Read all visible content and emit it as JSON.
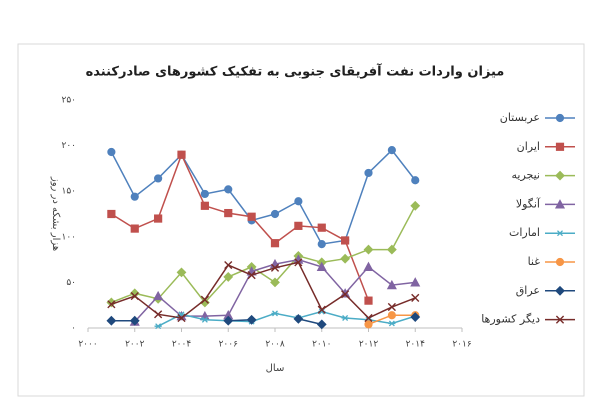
{
  "chart_data": {
    "type": "line",
    "title": "میزان واردات نفت آفریقای جنوبی به تفکیک کشورهای صادرکننده",
    "y_label": "هزار بشکه در روز",
    "x_label": "سال",
    "x": [
      2001,
      2002,
      2003,
      2004,
      2005,
      2006,
      2007,
      2008,
      2009,
      2010,
      2011,
      2012,
      2013,
      2014
    ],
    "xlim": [
      2000,
      2016
    ],
    "xticks": [
      {
        "value": 2000,
        "label": "۲۰۰۰"
      },
      {
        "value": 2002,
        "label": "۲۰۰۲"
      },
      {
        "value": 2004,
        "label": "۲۰۰۴"
      },
      {
        "value": 2006,
        "label": "۲۰۰۶"
      },
      {
        "value": 2008,
        "label": "۲۰۰۸"
      },
      {
        "value": 2010,
        "label": "۲۰۱۰"
      },
      {
        "value": 2012,
        "label": "۲۰۱۲"
      },
      {
        "value": 2014,
        "label": "۲۰۱۴"
      },
      {
        "value": 2016,
        "label": "۲۰۱۶"
      }
    ],
    "ylim": [
      0,
      250
    ],
    "yticks": [
      {
        "value": 0,
        "label": "۰"
      },
      {
        "value": 50,
        "label": "۵۰"
      },
      {
        "value": 100,
        "label": "۱۰۰"
      },
      {
        "value": 150,
        "label": "۱۵۰"
      },
      {
        "value": 200,
        "label": "۲۰۰"
      },
      {
        "value": 250,
        "label": "۲۵۰"
      }
    ],
    "grid": false,
    "legend": "right",
    "series": [
      {
        "name": "عربستان",
        "color": "#4f81bd",
        "marker": "circle",
        "values": [
          193,
          144,
          164,
          190,
          147,
          152,
          118,
          125,
          139,
          92,
          96,
          170,
          195,
          162
        ]
      },
      {
        "name": "ایران",
        "color": "#c0504d",
        "marker": "square",
        "values": [
          125,
          109,
          120,
          190,
          134,
          126,
          122,
          93,
          112,
          110,
          96,
          30,
          null,
          null
        ]
      },
      {
        "name": "نیجریه",
        "color": "#9bbb59",
        "marker": "diamond",
        "values": [
          28,
          38,
          32,
          61,
          28,
          56,
          67,
          50,
          79,
          72,
          76,
          86,
          86,
          134
        ]
      },
      {
        "name": "آنگولا",
        "color": "#8064a2",
        "marker": "triangle",
        "values": [
          null,
          7,
          35,
          13,
          13,
          14,
          62,
          70,
          75,
          67,
          38,
          67,
          47,
          50
        ]
      },
      {
        "name": "امارات",
        "color": "#4bacc6",
        "marker": "star",
        "values": [
          null,
          null,
          2,
          15,
          9,
          8,
          7,
          16,
          11,
          18,
          11,
          9,
          5,
          13
        ]
      },
      {
        "name": "غنا",
        "color": "#f79646",
        "marker": "circle",
        "values": [
          null,
          null,
          null,
          null,
          null,
          null,
          null,
          null,
          null,
          null,
          null,
          4,
          14,
          14
        ]
      },
      {
        "name": "عراق",
        "color": "#1f497d",
        "marker": "diamond",
        "values": [
          8,
          8,
          null,
          null,
          null,
          8,
          9,
          null,
          10,
          4,
          null,
          null,
          null,
          12
        ]
      },
      {
        "name": "دیگر کشورها",
        "color": "#772c2a",
        "marker": "x",
        "values": [
          26,
          35,
          15,
          11,
          31,
          69,
          58,
          66,
          72,
          20,
          37,
          11,
          23,
          33
        ]
      }
    ]
  }
}
